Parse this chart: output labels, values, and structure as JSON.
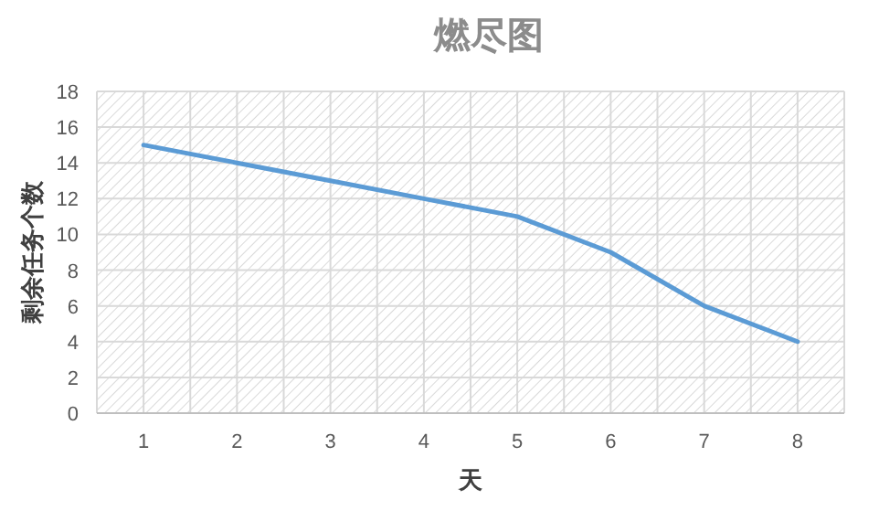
{
  "chart_data": {
    "type": "line",
    "title": "燃尽图",
    "xlabel": "天",
    "ylabel": "剩余任务个数",
    "categories": [
      "1",
      "2",
      "3",
      "4",
      "5",
      "6",
      "7",
      "8"
    ],
    "series": [
      {
        "color": "#5b9bd5",
        "values": [
          15,
          14,
          13,
          12,
          11,
          9,
          6,
          4
        ]
      }
    ],
    "ylim": [
      0,
      18
    ],
    "yticks": [
      0,
      2,
      4,
      6,
      8,
      10,
      12,
      14,
      16,
      18
    ],
    "grid": true,
    "line_style": "solid"
  }
}
